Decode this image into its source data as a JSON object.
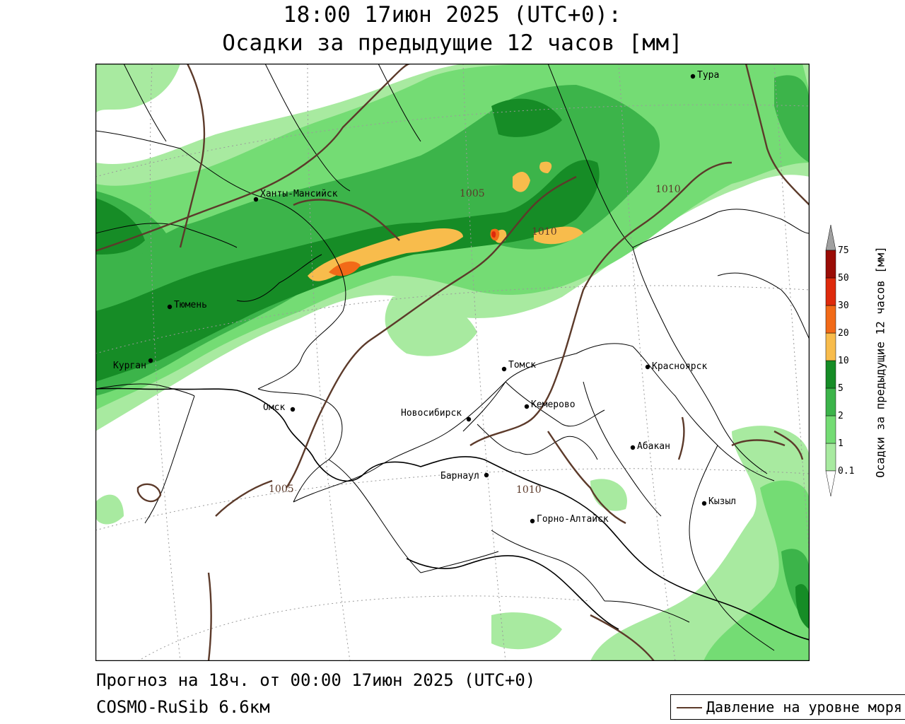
{
  "title": {
    "line1": "18:00 17июн 2025 (UTC+0):",
    "line2": "Осадки за предыдущие 12 часов [мм]"
  },
  "footer": {
    "forecast": "Прогноз на 18ч. от 00:00 17июн 2025 (UTC+0)",
    "model": "COSMO-RuSib 6.6км"
  },
  "legend": {
    "pressure": "Давление на уровне моря"
  },
  "colorbar": {
    "title": "Осадки за предыдущие 12 часов [мм]",
    "levels": [
      "0.1",
      "1",
      "2",
      "5",
      "10",
      "20",
      "30",
      "50",
      "75"
    ],
    "colors": [
      "#ffffff",
      "#a8eaa0",
      "#74dc74",
      "#3cb44a",
      "#168c26",
      "#f8bc4c",
      "#f26a18",
      "#de2a0c",
      "#9a0c06",
      "#a0a0a0"
    ]
  },
  "cities": [
    {
      "name": "Тура"
    },
    {
      "name": "Ханты-Мансийск"
    },
    {
      "name": "Тюмень"
    },
    {
      "name": "Курган"
    },
    {
      "name": "Омск"
    },
    {
      "name": "Новосибирск"
    },
    {
      "name": "Томск"
    },
    {
      "name": "Кемерово"
    },
    {
      "name": "Красноярск"
    },
    {
      "name": "Абакан"
    },
    {
      "name": "Барнаул"
    },
    {
      "name": "Горно-Алтайск"
    },
    {
      "name": "Кызыл"
    }
  ],
  "isobars": [
    {
      "label": "1005"
    },
    {
      "label": "1010"
    },
    {
      "label": "1010"
    },
    {
      "label": "1005"
    },
    {
      "label": "1010"
    }
  ],
  "colors": {
    "isobar": "#5c3a2a",
    "border": "#000000",
    "graticule": "#9a9a9a"
  }
}
